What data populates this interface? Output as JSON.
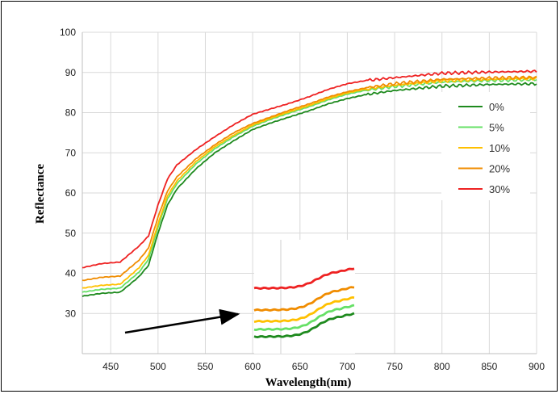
{
  "chart_data": {
    "type": "line",
    "xlabel": "Wavelength(nm)",
    "ylabel": "Reflectance",
    "xlim": [
      420,
      900
    ],
    "ylim": [
      20,
      100
    ],
    "xticks": [
      450,
      500,
      550,
      600,
      650,
      700,
      750,
      800,
      850,
      900
    ],
    "yticks": [
      30,
      40,
      50,
      60,
      70,
      80,
      90,
      100
    ],
    "grid": true,
    "legend_position": "right",
    "x": [
      420,
      440,
      460,
      470,
      480,
      490,
      500,
      510,
      520,
      540,
      560,
      580,
      600,
      620,
      640,
      660,
      680,
      700,
      720,
      750,
      800,
      850,
      900
    ],
    "series": [
      {
        "name": "0%",
        "color": "#1e8a1e",
        "values": [
          34.3,
          35.0,
          35.3,
          37.2,
          39.2,
          42.0,
          50.0,
          57.0,
          61.0,
          66.0,
          70.0,
          73.0,
          75.8,
          77.5,
          79.0,
          80.5,
          82.2,
          83.5,
          84.5,
          85.5,
          86.6,
          87.0,
          87.2
        ]
      },
      {
        "name": "5%",
        "color": "#66e066",
        "values": [
          35.3,
          36.0,
          36.3,
          38.3,
          40.3,
          43.5,
          51.5,
          58.5,
          62.3,
          67.2,
          71.0,
          74.0,
          76.6,
          78.4,
          80.0,
          81.5,
          83.2,
          84.6,
          85.6,
          86.5,
          87.6,
          88.0,
          88.2
        ]
      },
      {
        "name": "10%",
        "color": "#ffc000",
        "values": [
          36.3,
          37.0,
          37.3,
          39.3,
          41.4,
          44.5,
          52.3,
          59.3,
          63.0,
          67.8,
          71.5,
          74.4,
          76.9,
          78.7,
          80.3,
          81.8,
          83.5,
          84.9,
          85.9,
          86.8,
          87.9,
          88.3,
          88.5
        ]
      },
      {
        "name": "20%",
        "color": "#f08c00",
        "values": [
          38.2,
          39.0,
          39.3,
          41.3,
          43.3,
          46.3,
          54.0,
          60.5,
          64.0,
          68.5,
          72.0,
          75.0,
          77.3,
          79.0,
          80.7,
          82.2,
          83.9,
          85.2,
          86.2,
          87.2,
          88.3,
          88.6,
          88.8
        ]
      },
      {
        "name": "30%",
        "color": "#ee2222",
        "values": [
          41.4,
          42.4,
          42.8,
          44.8,
          46.8,
          49.3,
          57.0,
          63.5,
          67.0,
          70.8,
          74.0,
          77.0,
          79.6,
          81.0,
          82.4,
          84.0,
          85.8,
          87.2,
          88.0,
          88.7,
          89.8,
          90.1,
          90.3
        ]
      }
    ],
    "inset": {
      "description_visible": false,
      "x_range": [
        600,
        710
      ],
      "y_range": [
        30,
        50
      ]
    }
  }
}
